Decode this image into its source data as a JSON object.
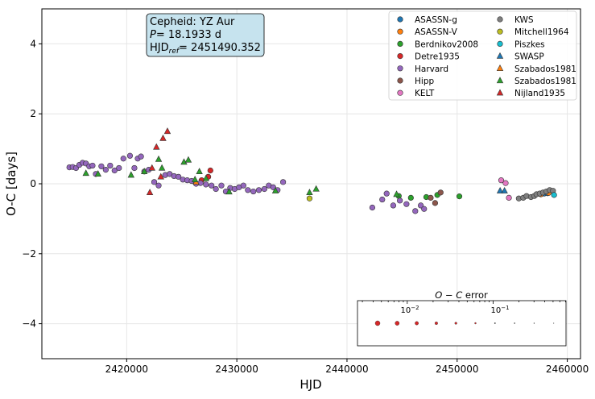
{
  "chart_data": {
    "type": "scatter",
    "xlabel": "HJD",
    "ylabel": "O-C [days]",
    "xlim": [
      2412300,
      2461200
    ],
    "ylim": [
      -5.0,
      5.0
    ],
    "x_ticks": [
      2420000,
      2430000,
      2440000,
      2450000,
      2460000
    ],
    "x_tick_labels": [
      "2420000",
      "2430000",
      "2440000",
      "2450000",
      "2460000"
    ],
    "y_ticks": [
      -4,
      -2,
      0,
      2,
      4
    ],
    "y_tick_labels": [
      "−4",
      "−2",
      "0",
      "2",
      "4"
    ],
    "grid": true,
    "legend_position": "top-right",
    "info_box": {
      "line1": "Cepheid: YZ Aur",
      "line2_prefix": "P",
      "line2_value": "= 18.1933 d",
      "line3_prefix": "HJD",
      "line3_sub": "ref",
      "line3_value": "= 2451490.352"
    },
    "error_legend": {
      "title_parts": [
        "O",
        " − ",
        "C",
        " error"
      ],
      "tick_labels": [
        {
          "base": "10",
          "exp": "−2"
        },
        {
          "base": "10",
          "exp": "−1"
        }
      ]
    },
    "series": [
      {
        "name": "ASASSN-g",
        "marker": "circle",
        "color": "#1f77b4",
        "points": [
          [
            2457900,
            -0.28
          ],
          [
            2458200,
            -0.27
          ]
        ]
      },
      {
        "name": "ASASSN-V",
        "marker": "circle",
        "color": "#ff7f0e",
        "points": [
          [
            2457600,
            -0.3
          ],
          [
            2458300,
            -0.26
          ]
        ]
      },
      {
        "name": "Berdnikov2008",
        "marker": "circle",
        "color": "#2ca02c",
        "points": [
          [
            2444700,
            -0.35
          ],
          [
            2445800,
            -0.4
          ],
          [
            2447200,
            -0.38
          ],
          [
            2448200,
            -0.32
          ],
          [
            2450200,
            -0.36
          ]
        ]
      },
      {
        "name": "Detre1935",
        "marker": "circle",
        "color": "#d62728",
        "points": [
          [
            2426800,
            0.1
          ],
          [
            2427400,
            0.2
          ],
          [
            2427600,
            0.38
          ]
        ]
      },
      {
        "name": "Harvard",
        "marker": "circle",
        "color": "#9467bd",
        "points": [
          [
            2414800,
            0.47
          ],
          [
            2415100,
            0.48
          ],
          [
            2415400,
            0.45
          ],
          [
            2415700,
            0.54
          ],
          [
            2416000,
            0.6
          ],
          [
            2416300,
            0.58
          ],
          [
            2416600,
            0.5
          ],
          [
            2416900,
            0.52
          ],
          [
            2417200,
            0.28
          ],
          [
            2417700,
            0.5
          ],
          [
            2418100,
            0.4
          ],
          [
            2418500,
            0.52
          ],
          [
            2418900,
            0.38
          ],
          [
            2419300,
            0.45
          ],
          [
            2419700,
            0.72
          ],
          [
            2420300,
            0.8
          ],
          [
            2420700,
            0.45
          ],
          [
            2421000,
            0.72
          ],
          [
            2421300,
            0.78
          ],
          [
            2421600,
            0.35
          ],
          [
            2422000,
            0.4
          ],
          [
            2422500,
            0.05
          ],
          [
            2422900,
            -0.05
          ],
          [
            2423500,
            0.25
          ],
          [
            2423900,
            0.28
          ],
          [
            2424300,
            0.22
          ],
          [
            2424700,
            0.2
          ],
          [
            2425100,
            0.12
          ],
          [
            2425500,
            0.1
          ],
          [
            2425900,
            0.08
          ],
          [
            2426300,
            0.0
          ],
          [
            2426700,
            0.02
          ],
          [
            2427200,
            -0.02
          ],
          [
            2427700,
            -0.05
          ],
          [
            2428100,
            -0.15
          ],
          [
            2428600,
            -0.05
          ],
          [
            2429000,
            -0.22
          ],
          [
            2429400,
            -0.12
          ],
          [
            2429800,
            -0.15
          ],
          [
            2430200,
            -0.1
          ],
          [
            2430600,
            -0.05
          ],
          [
            2431000,
            -0.18
          ],
          [
            2431500,
            -0.22
          ],
          [
            2432000,
            -0.18
          ],
          [
            2432500,
            -0.15
          ],
          [
            2432900,
            -0.05
          ],
          [
            2433300,
            -0.1
          ],
          [
            2433700,
            -0.18
          ],
          [
            2434200,
            0.05
          ],
          [
            2442300,
            -0.68
          ],
          [
            2443200,
            -0.45
          ],
          [
            2443600,
            -0.28
          ],
          [
            2444200,
            -0.62
          ],
          [
            2444800,
            -0.48
          ],
          [
            2445400,
            -0.58
          ],
          [
            2446200,
            -0.78
          ],
          [
            2446700,
            -0.62
          ],
          [
            2447000,
            -0.72
          ]
        ]
      },
      {
        "name": "Hipp",
        "marker": "circle",
        "color": "#8c564b",
        "points": [
          [
            2447600,
            -0.4
          ],
          [
            2448000,
            -0.55
          ],
          [
            2448500,
            -0.25
          ]
        ]
      },
      {
        "name": "KELT",
        "marker": "circle",
        "color": "#e377c2",
        "points": [
          [
            2454000,
            0.1
          ],
          [
            2454400,
            0.02
          ],
          [
            2454700,
            -0.4
          ]
        ]
      },
      {
        "name": "KWS",
        "marker": "circle",
        "color": "#7f7f7f",
        "points": [
          [
            2455600,
            -0.42
          ],
          [
            2456000,
            -0.4
          ],
          [
            2456300,
            -0.35
          ],
          [
            2456700,
            -0.38
          ],
          [
            2457000,
            -0.35
          ],
          [
            2457200,
            -0.3
          ],
          [
            2457500,
            -0.28
          ],
          [
            2457800,
            -0.25
          ],
          [
            2458100,
            -0.22
          ],
          [
            2458400,
            -0.18
          ],
          [
            2458700,
            -0.2
          ]
        ]
      },
      {
        "name": "Mitchell1964",
        "marker": "circle",
        "color": "#bcbd22",
        "points": [
          [
            2436600,
            -0.42
          ]
        ]
      },
      {
        "name": "Piszkes",
        "marker": "circle",
        "color": "#17becf",
        "points": [
          [
            2458800,
            -0.32
          ]
        ]
      },
      {
        "name": "SWASP",
        "marker": "triangle",
        "color": "#1f77b4",
        "points": [
          [
            2453900,
            -0.2
          ],
          [
            2454300,
            -0.2
          ]
        ]
      },
      {
        "name": "Szabados1981",
        "marker": "triangle",
        "color": "#ff7f0e",
        "points": [
          [
            2426300,
            0.05
          ]
        ]
      },
      {
        "name": "Szabados1981",
        "marker": "triangle",
        "color": "#2ca02c",
        "points": [
          [
            2416300,
            0.3
          ],
          [
            2417400,
            0.28
          ],
          [
            2420400,
            0.25
          ],
          [
            2421600,
            0.35
          ],
          [
            2422900,
            0.7
          ],
          [
            2423200,
            0.45
          ],
          [
            2425200,
            0.62
          ],
          [
            2425600,
            0.68
          ],
          [
            2426200,
            0.12
          ],
          [
            2426600,
            0.35
          ],
          [
            2427200,
            0.15
          ],
          [
            2429300,
            -0.23
          ],
          [
            2433500,
            -0.2
          ],
          [
            2436600,
            -0.25
          ],
          [
            2437200,
            -0.15
          ],
          [
            2444500,
            -0.3
          ]
        ]
      },
      {
        "name": "Nijland1935",
        "marker": "triangle",
        "color": "#d62728",
        "points": [
          [
            2422100,
            -0.25
          ],
          [
            2422300,
            0.45
          ],
          [
            2422700,
            1.05
          ],
          [
            2423100,
            0.2
          ],
          [
            2423300,
            1.3
          ],
          [
            2423700,
            1.5
          ]
        ]
      }
    ]
  }
}
